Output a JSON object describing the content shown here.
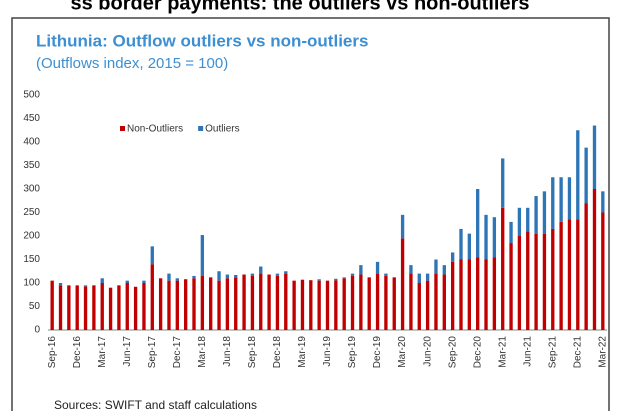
{
  "header": "ss border payments: the outliers vs non-outliers",
  "chart_data": {
    "type": "stacked_bar",
    "title": "Lithunia: Outflow outliers vs non-outliers",
    "subtitle": "(Outflows index, 2015 = 100)",
    "source": "Sources: SWIFT and staff calculations",
    "categories": [
      "Sep-16",
      null,
      null,
      "Dec-16",
      null,
      null,
      "Mar-17",
      null,
      null,
      "Jun-17",
      null,
      null,
      "Sep-17",
      null,
      null,
      "Dec-17",
      null,
      null,
      "Mar-18",
      null,
      null,
      "Jun-18",
      null,
      null,
      "Sep-18",
      null,
      null,
      "Dec-18",
      null,
      null,
      "Mar-19",
      null,
      null,
      "Jun-19",
      null,
      null,
      "Sep-19",
      null,
      null,
      "Dec-19",
      null,
      null,
      "Mar-20",
      null,
      null,
      "Jun-20",
      null,
      null,
      "Sep-20",
      null,
      null,
      "Dec-20",
      null,
      null,
      "Mar-21",
      null,
      null,
      "Jun-21",
      null,
      null,
      "Sep-21",
      null,
      null,
      "Dec-21",
      null,
      null,
      "Mar-22"
    ],
    "series": [
      {
        "name": "Non-Outliers",
        "color": "#c00000",
        "values": [
          105,
          95,
          95,
          95,
          93,
          95,
          100,
          90,
          95,
          100,
          92,
          100,
          140,
          110,
          105,
          105,
          108,
          110,
          115,
          112,
          105,
          110,
          112,
          118,
          115,
          120,
          118,
          115,
          120,
          105,
          107,
          106,
          105,
          105,
          106,
          110,
          115,
          118,
          112,
          120,
          115,
          112,
          195,
          120,
          100,
          105,
          120,
          118,
          145,
          150,
          150,
          155,
          150,
          155,
          260,
          185,
          200,
          210,
          205,
          205,
          215,
          230,
          235,
          235,
          270,
          300,
          250
        ]
      },
      {
        "name": "Outliers",
        "color": "#2e75b6",
        "values": [
          0,
          5,
          0,
          0,
          2,
          0,
          10,
          0,
          0,
          5,
          0,
          5,
          38,
          0,
          15,
          5,
          0,
          5,
          87,
          0,
          20,
          8,
          5,
          0,
          5,
          15,
          0,
          5,
          5,
          0,
          0,
          0,
          3,
          0,
          3,
          2,
          5,
          20,
          0,
          25,
          5,
          0,
          50,
          18,
          20,
          15,
          30,
          20,
          20,
          65,
          55,
          145,
          95,
          85,
          105,
          45,
          60,
          50,
          80,
          90,
          110,
          95,
          90,
          190,
          118,
          135,
          45
        ]
      }
    ],
    "ylim": [
      0,
      500
    ],
    "yticks": [
      0,
      50,
      100,
      150,
      200,
      250,
      300,
      350,
      400,
      450,
      500
    ],
    "grid": false,
    "legend": "top-left"
  }
}
